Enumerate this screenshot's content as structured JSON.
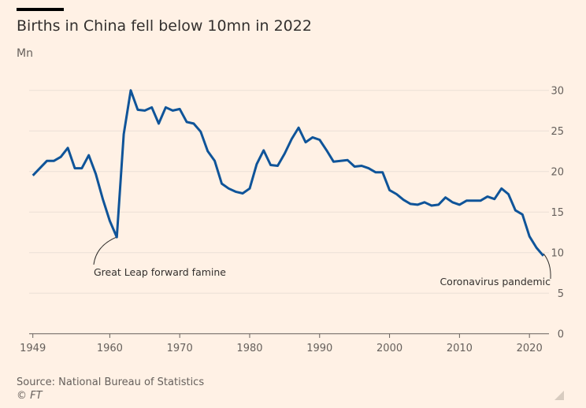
{
  "chart_data": {
    "type": "line",
    "title": "Births in China fell below 10mn in 2022",
    "ylabel": "Mn",
    "xlabel": "",
    "ylim": [
      0,
      30
    ],
    "xlim": [
      1949,
      2022
    ],
    "grid": true,
    "yticks": [
      0,
      5,
      10,
      15,
      20,
      25,
      30
    ],
    "xticks": [
      1949,
      1960,
      1970,
      1980,
      1990,
      2000,
      2010,
      2020
    ],
    "line_color": "#0F5499",
    "x": [
      1949,
      1950,
      1951,
      1952,
      1953,
      1954,
      1955,
      1956,
      1957,
      1958,
      1959,
      1960,
      1961,
      1962,
      1963,
      1964,
      1965,
      1966,
      1967,
      1968,
      1969,
      1970,
      1971,
      1972,
      1973,
      1974,
      1975,
      1976,
      1977,
      1978,
      1979,
      1980,
      1981,
      1982,
      1983,
      1984,
      1985,
      1986,
      1987,
      1988,
      1989,
      1990,
      1991,
      1992,
      1993,
      1994,
      1995,
      1996,
      1997,
      1998,
      1999,
      2000,
      2001,
      2002,
      2003,
      2004,
      2005,
      2006,
      2007,
      2008,
      2009,
      2010,
      2011,
      2012,
      2013,
      2014,
      2015,
      2016,
      2017,
      2018,
      2019,
      2020,
      2021,
      2022
    ],
    "values": [
      19.5,
      20.4,
      21.3,
      21.3,
      21.8,
      22.9,
      20.4,
      20.4,
      22.0,
      19.7,
      16.6,
      13.9,
      11.9,
      24.6,
      30.0,
      27.6,
      27.5,
      27.9,
      25.9,
      27.9,
      27.5,
      27.7,
      26.1,
      25.9,
      24.9,
      22.5,
      21.3,
      18.5,
      17.9,
      17.5,
      17.3,
      17.9,
      20.9,
      22.6,
      20.8,
      20.7,
      22.2,
      24.0,
      25.4,
      23.6,
      24.2,
      23.9,
      22.6,
      21.2,
      21.3,
      21.4,
      20.6,
      20.7,
      20.4,
      19.9,
      19.9,
      17.7,
      17.2,
      16.5,
      16.0,
      15.9,
      16.2,
      15.8,
      15.9,
      16.8,
      16.2,
      15.9,
      16.4,
      16.4,
      16.4,
      16.9,
      16.6,
      17.9,
      17.2,
      15.2,
      14.7,
      12.0,
      10.6,
      9.6
    ],
    "annotations": [
      {
        "x": 1961,
        "text": "Great Leap forward famine"
      },
      {
        "x": 2022,
        "text": "Coronavirus pandemic"
      }
    ]
  },
  "source": "Source: National Bureau of Statistics",
  "copyright": "© FT"
}
